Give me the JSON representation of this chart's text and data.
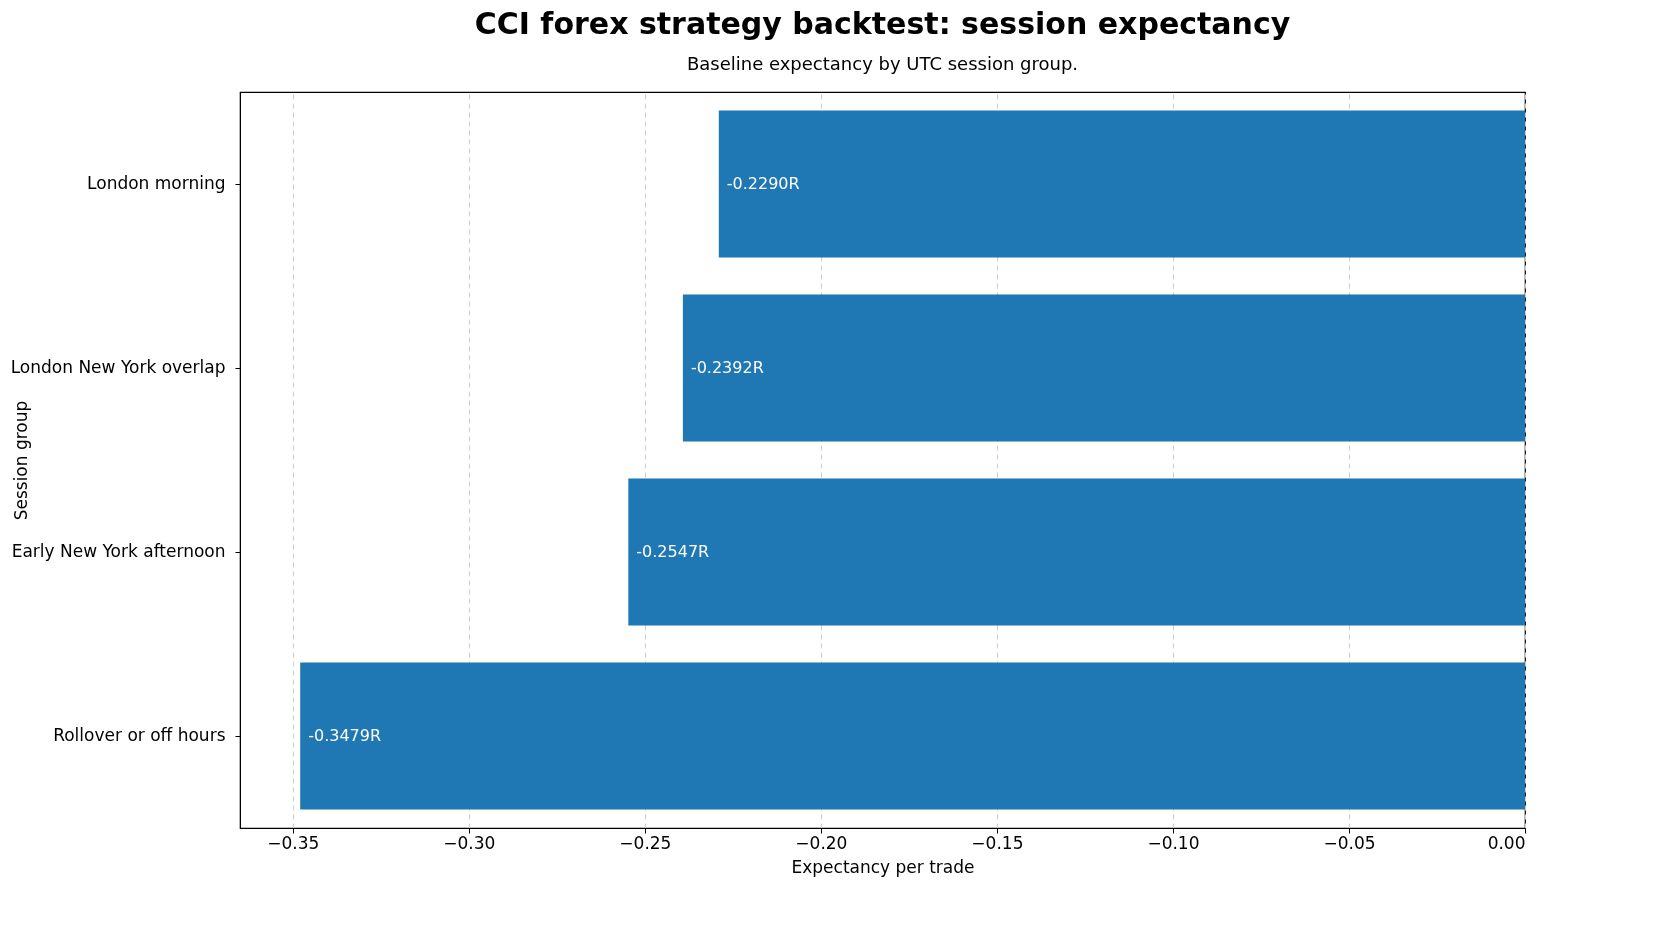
{
  "chart_data": {
    "type": "bar",
    "orientation": "horizontal",
    "title": "CCI forex strategy backtest: session expectancy",
    "subtitle": "Baseline expectancy by UTC session group.",
    "xlabel": "Expectancy per trade",
    "ylabel": "Session group",
    "categories": [
      "London morning",
      "London New York overlap",
      "Early New York afternoon",
      "Rollover or off hours"
    ],
    "values": [
      -0.229,
      -0.2392,
      -0.2547,
      -0.3479
    ],
    "value_labels": [
      "-0.2290R",
      "-0.2392R",
      "-0.2547R",
      "-0.3479R"
    ],
    "color": "#1f77b4",
    "xlim": [
      -0.365,
      0
    ],
    "xticks": [
      {
        "value": -0.35,
        "label": "−0.35"
      },
      {
        "value": -0.3,
        "label": "−0.30"
      },
      {
        "value": -0.25,
        "label": "−0.25"
      },
      {
        "value": -0.2,
        "label": "−0.20"
      },
      {
        "value": -0.15,
        "label": "−0.15"
      },
      {
        "value": -0.1,
        "label": "−0.10"
      },
      {
        "value": -0.05,
        "label": "−0.05"
      },
      {
        "value": 0,
        "label": "0.00"
      }
    ],
    "grid": "x"
  }
}
